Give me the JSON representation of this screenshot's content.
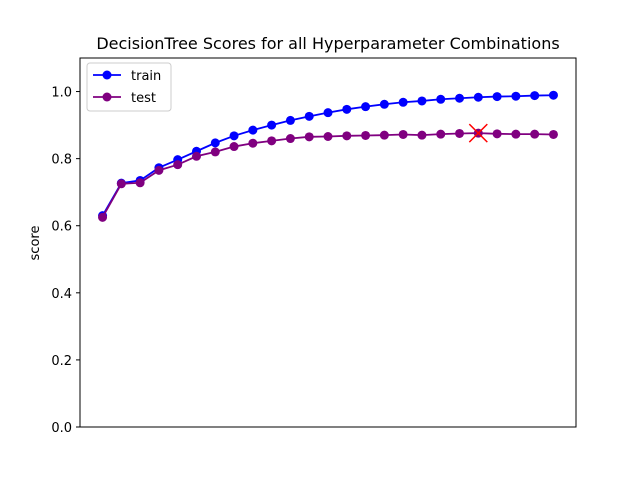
{
  "chart_data": {
    "type": "line",
    "title": "DecisionTree Scores for all Hyperparameter Combinations",
    "xlabel": "",
    "ylabel": "score",
    "x": [
      0,
      1,
      2,
      3,
      4,
      5,
      6,
      7,
      8,
      9,
      10,
      11,
      12,
      13,
      14,
      15,
      16,
      17,
      18,
      19,
      20,
      21,
      22,
      23,
      24
    ],
    "xlim": [
      -1.2,
      25.2
    ],
    "ylim": [
      0.0,
      1.1
    ],
    "yticks": [
      0.0,
      0.2,
      0.4,
      0.6,
      0.8,
      1.0
    ],
    "ytick_labels": [
      "0.0",
      "0.2",
      "0.4",
      "0.6",
      "0.8",
      "1.0"
    ],
    "grid": false,
    "legend_position": "upper-left",
    "series": [
      {
        "name": "train",
        "color": "#0000ff",
        "marker": "circle",
        "values": [
          0.63,
          0.727,
          0.735,
          0.773,
          0.797,
          0.822,
          0.847,
          0.868,
          0.885,
          0.9,
          0.914,
          0.926,
          0.937,
          0.947,
          0.955,
          0.962,
          0.968,
          0.972,
          0.977,
          0.98,
          0.983,
          0.985,
          0.986,
          0.988,
          0.989
        ]
      },
      {
        "name": "test",
        "color": "#800080",
        "marker": "circle",
        "values": [
          0.625,
          0.725,
          0.728,
          0.765,
          0.782,
          0.807,
          0.82,
          0.836,
          0.846,
          0.853,
          0.86,
          0.865,
          0.866,
          0.868,
          0.869,
          0.87,
          0.872,
          0.87,
          0.873,
          0.875,
          0.876,
          0.874,
          0.873,
          0.873,
          0.872
        ]
      }
    ],
    "highlight": {
      "marker": "x",
      "color": "#ff0000",
      "x": 20,
      "y": 0.876
    }
  }
}
